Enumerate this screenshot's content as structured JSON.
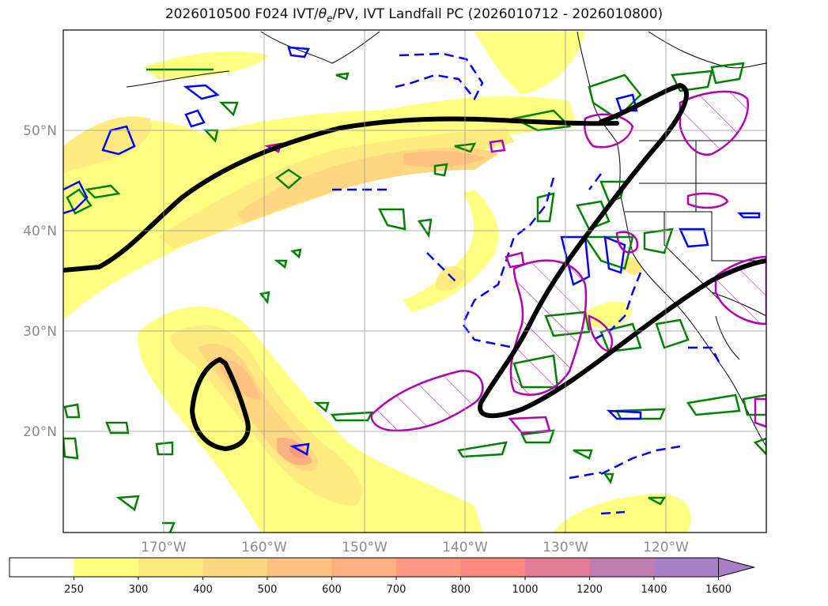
{
  "title": {
    "prefix": "2026010500 F024 IVT/",
    "theta": "θ",
    "theta_sub": "e",
    "suffix": "/PV, IVT Landfall PC (2026010712 - 2026010800)"
  },
  "map": {
    "lat_labels": [
      "50°N",
      "40°N",
      "30°N",
      "20°N"
    ],
    "lon_labels": [
      "170°W",
      "160°W",
      "150°W",
      "140°W",
      "130°W",
      "120°W"
    ],
    "contour_colors": {
      "pc_thick": "#000000",
      "theta_pos": "#0000ff",
      "theta_neg_dashed": "#0000ff",
      "pv": "#008000",
      "landfall_hatched": "#b000b0",
      "coast": "#000000"
    }
  },
  "colorbar": {
    "levels": [
      "250",
      "300",
      "400",
      "500",
      "600",
      "700",
      "800",
      "1000",
      "1200",
      "1400",
      "1600"
    ],
    "colors": [
      "#ffffff",
      "#ffff80",
      "#ffeb80",
      "#ffd780",
      "#ffc280",
      "#ffb080",
      "#ff9a80",
      "#ff8a80",
      "#e27b96",
      "#c07bb0",
      "#a87fc8"
    ],
    "extend": "max"
  }
}
